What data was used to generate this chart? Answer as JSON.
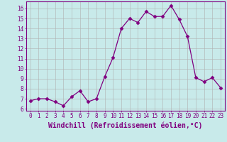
{
  "x": [
    0,
    1,
    2,
    3,
    4,
    5,
    6,
    7,
    8,
    9,
    10,
    11,
    12,
    13,
    14,
    15,
    16,
    17,
    18,
    19,
    20,
    21,
    22,
    23
  ],
  "y": [
    6.8,
    7.0,
    7.0,
    6.7,
    6.3,
    7.2,
    7.8,
    6.7,
    7.0,
    9.2,
    11.1,
    14.0,
    15.0,
    14.6,
    15.7,
    15.2,
    15.2,
    16.3,
    14.9,
    13.2,
    9.1,
    8.7,
    9.1,
    8.1
  ],
  "line_color": "#800080",
  "marker": "D",
  "marker_size": 2.5,
  "bg_color": "#c8eaea",
  "grid_color": "#b0b0b0",
  "xlabel": "Windchill (Refroidissement éolien,°C)",
  "xlabel_color": "#800080",
  "xlim": [
    -0.5,
    23.5
  ],
  "ylim": [
    5.8,
    16.7
  ],
  "yticks": [
    6,
    7,
    8,
    9,
    10,
    11,
    12,
    13,
    14,
    15,
    16
  ],
  "xticks": [
    0,
    1,
    2,
    3,
    4,
    5,
    6,
    7,
    8,
    9,
    10,
    11,
    12,
    13,
    14,
    15,
    16,
    17,
    18,
    19,
    20,
    21,
    22,
    23
  ],
  "tick_color": "#800080",
  "spine_color": "#800080",
  "tick_fontsize": 5.5,
  "xlabel_fontsize": 7.0
}
